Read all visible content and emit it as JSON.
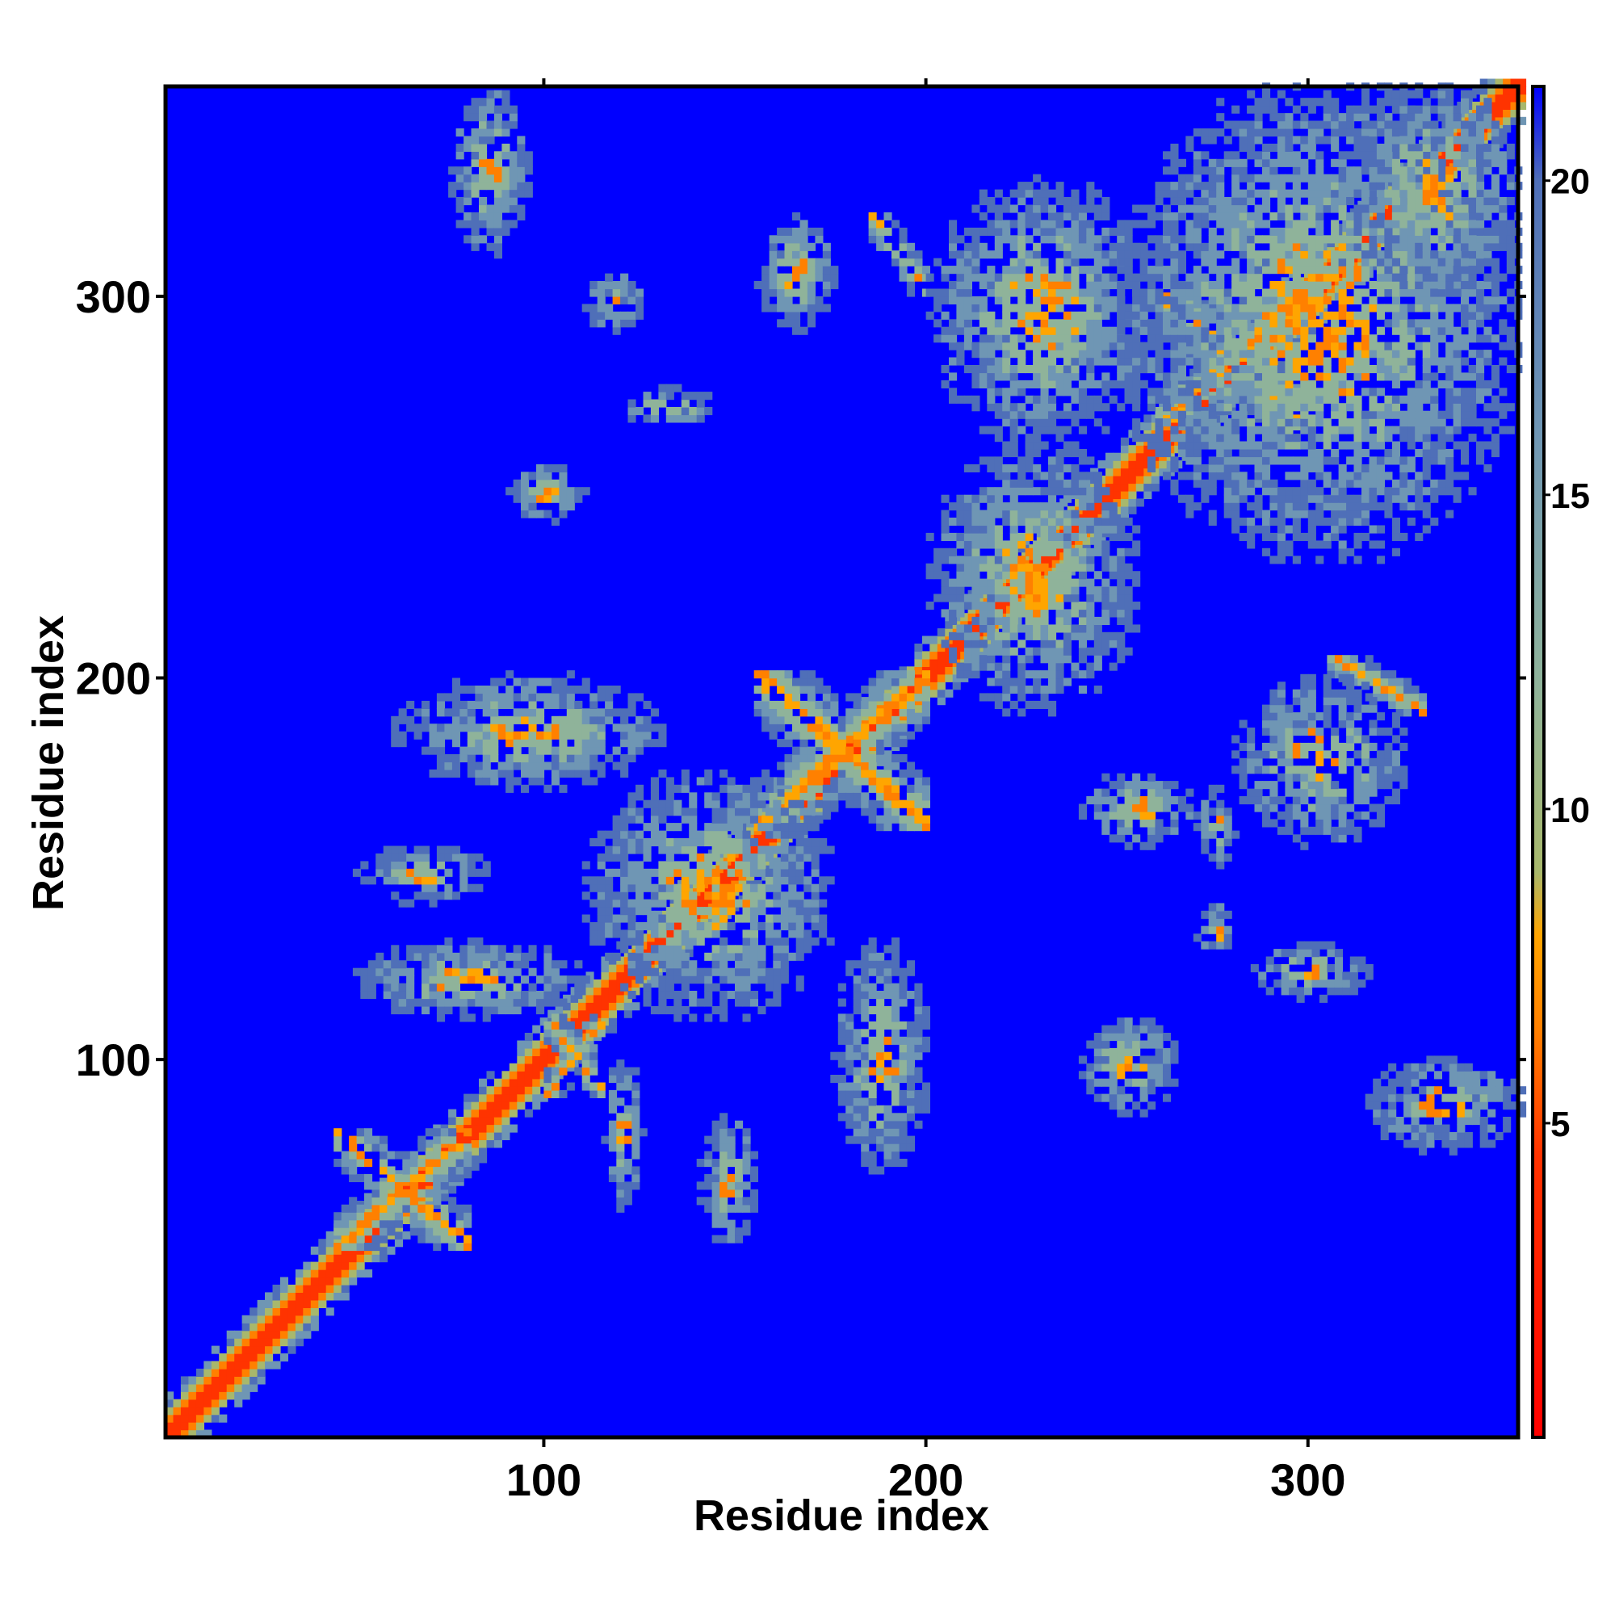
{
  "chart_data": {
    "type": "heatmap",
    "title": "",
    "xlabel": "Residue index",
    "ylabel": "Residue index",
    "xlim": [
      1,
      355
    ],
    "ylim": [
      1,
      355
    ],
    "xticks": [
      100,
      200,
      300
    ],
    "yticks": [
      100,
      200,
      300
    ],
    "colorbar": {
      "range": [
        0,
        21.5
      ],
      "ticks": [
        5,
        10,
        15,
        20
      ],
      "colors": [
        {
          "value": 0,
          "color": "#ff0000"
        },
        {
          "value": 4.5,
          "color": "#ff3300"
        },
        {
          "value": 6.5,
          "color": "#ff8000"
        },
        {
          "value": 8,
          "color": "#ffa500"
        },
        {
          "value": 9,
          "color": "#a8b86c"
        },
        {
          "value": 12,
          "color": "#8fb39a"
        },
        {
          "value": 16,
          "color": "#6f96b4"
        },
        {
          "value": 20,
          "color": "#4f6fb8"
        },
        {
          "value": 21.5,
          "color": "#0000ff"
        }
      ]
    },
    "background_color": "#0000ff",
    "diagonal_color": "#ff0000",
    "contact_regions": [
      {
        "x": [
          1,
          355
        ],
        "y": [
          1,
          355
        ],
        "pattern": "diagonal"
      },
      {
        "x": [
          45,
          80
        ],
        "y": [
          50,
          80
        ],
        "pattern": "cross"
      },
      {
        "x": [
          100,
          115
        ],
        "y": [
          90,
          110
        ],
        "pattern": "cross"
      },
      {
        "x": [
          155,
          200
        ],
        "y": [
          160,
          200
        ],
        "pattern": "cross"
      },
      {
        "x": [
          260,
          300
        ],
        "y": [
          265,
          300
        ],
        "pattern": "cross"
      },
      {
        "x": [
          305,
          330
        ],
        "y": [
          190,
          205
        ],
        "pattern": "strand-pair"
      },
      {
        "x": [
          185,
          200
        ],
        "y": [
          300,
          320
        ],
        "pattern": "strand-pair"
      },
      {
        "x": [
          75,
          95
        ],
        "y": [
          310,
          355
        ],
        "pattern": "patch"
      },
      {
        "x": [
          110,
          125
        ],
        "y": [
          290,
          305
        ],
        "pattern": "patch"
      },
      {
        "x": [
          120,
          145
        ],
        "y": [
          265,
          275
        ],
        "pattern": "patch"
      },
      {
        "x": [
          90,
          110
        ],
        "y": [
          240,
          255
        ],
        "pattern": "patch"
      },
      {
        "x": [
          155,
          175
        ],
        "y": [
          290,
          320
        ],
        "pattern": "patch"
      },
      {
        "x": [
          50,
          85
        ],
        "y": [
          140,
          155
        ],
        "pattern": "patch"
      },
      {
        "x": [
          50,
          110
        ],
        "y": [
          110,
          130
        ],
        "pattern": "patch"
      },
      {
        "x": [
          60,
          130
        ],
        "y": [
          170,
          200
        ],
        "pattern": "patch"
      },
      {
        "x": [
          110,
          175
        ],
        "y": [
          110,
          175
        ],
        "pattern": "patch"
      },
      {
        "x": [
          140,
          155
        ],
        "y": [
          50,
          85
        ],
        "pattern": "patch"
      },
      {
        "x": [
          115,
          125
        ],
        "y": [
          60,
          100
        ],
        "pattern": "patch"
      },
      {
        "x": [
          175,
          200
        ],
        "y": [
          70,
          130
        ],
        "pattern": "patch"
      },
      {
        "x": [
          240,
          265
        ],
        "y": [
          85,
          110
        ],
        "pattern": "patch"
      },
      {
        "x": [
          270,
          280
        ],
        "y": [
          125,
          140
        ],
        "pattern": "patch"
      },
      {
        "x": [
          285,
          315
        ],
        "y": [
          115,
          130
        ],
        "pattern": "patch"
      },
      {
        "x": [
          315,
          355
        ],
        "y": [
          75,
          100
        ],
        "pattern": "patch"
      },
      {
        "x": [
          280,
          325
        ],
        "y": [
          155,
          200
        ],
        "pattern": "patch"
      },
      {
        "x": [
          240,
          270
        ],
        "y": [
          155,
          175
        ],
        "pattern": "patch"
      },
      {
        "x": [
          270,
          280
        ],
        "y": [
          150,
          170
        ],
        "pattern": "patch"
      },
      {
        "x": [
          200,
          255
        ],
        "y": [
          190,
          260
        ],
        "pattern": "patch"
      },
      {
        "x": [
          200,
          260
        ],
        "y": [
          260,
          330
        ],
        "pattern": "patch"
      },
      {
        "x": [
          250,
          355
        ],
        "y": [
          230,
          355
        ],
        "pattern": "patch"
      },
      {
        "x": [
          310,
          355
        ],
        "y": [
          300,
          355
        ],
        "pattern": "patch"
      }
    ]
  }
}
